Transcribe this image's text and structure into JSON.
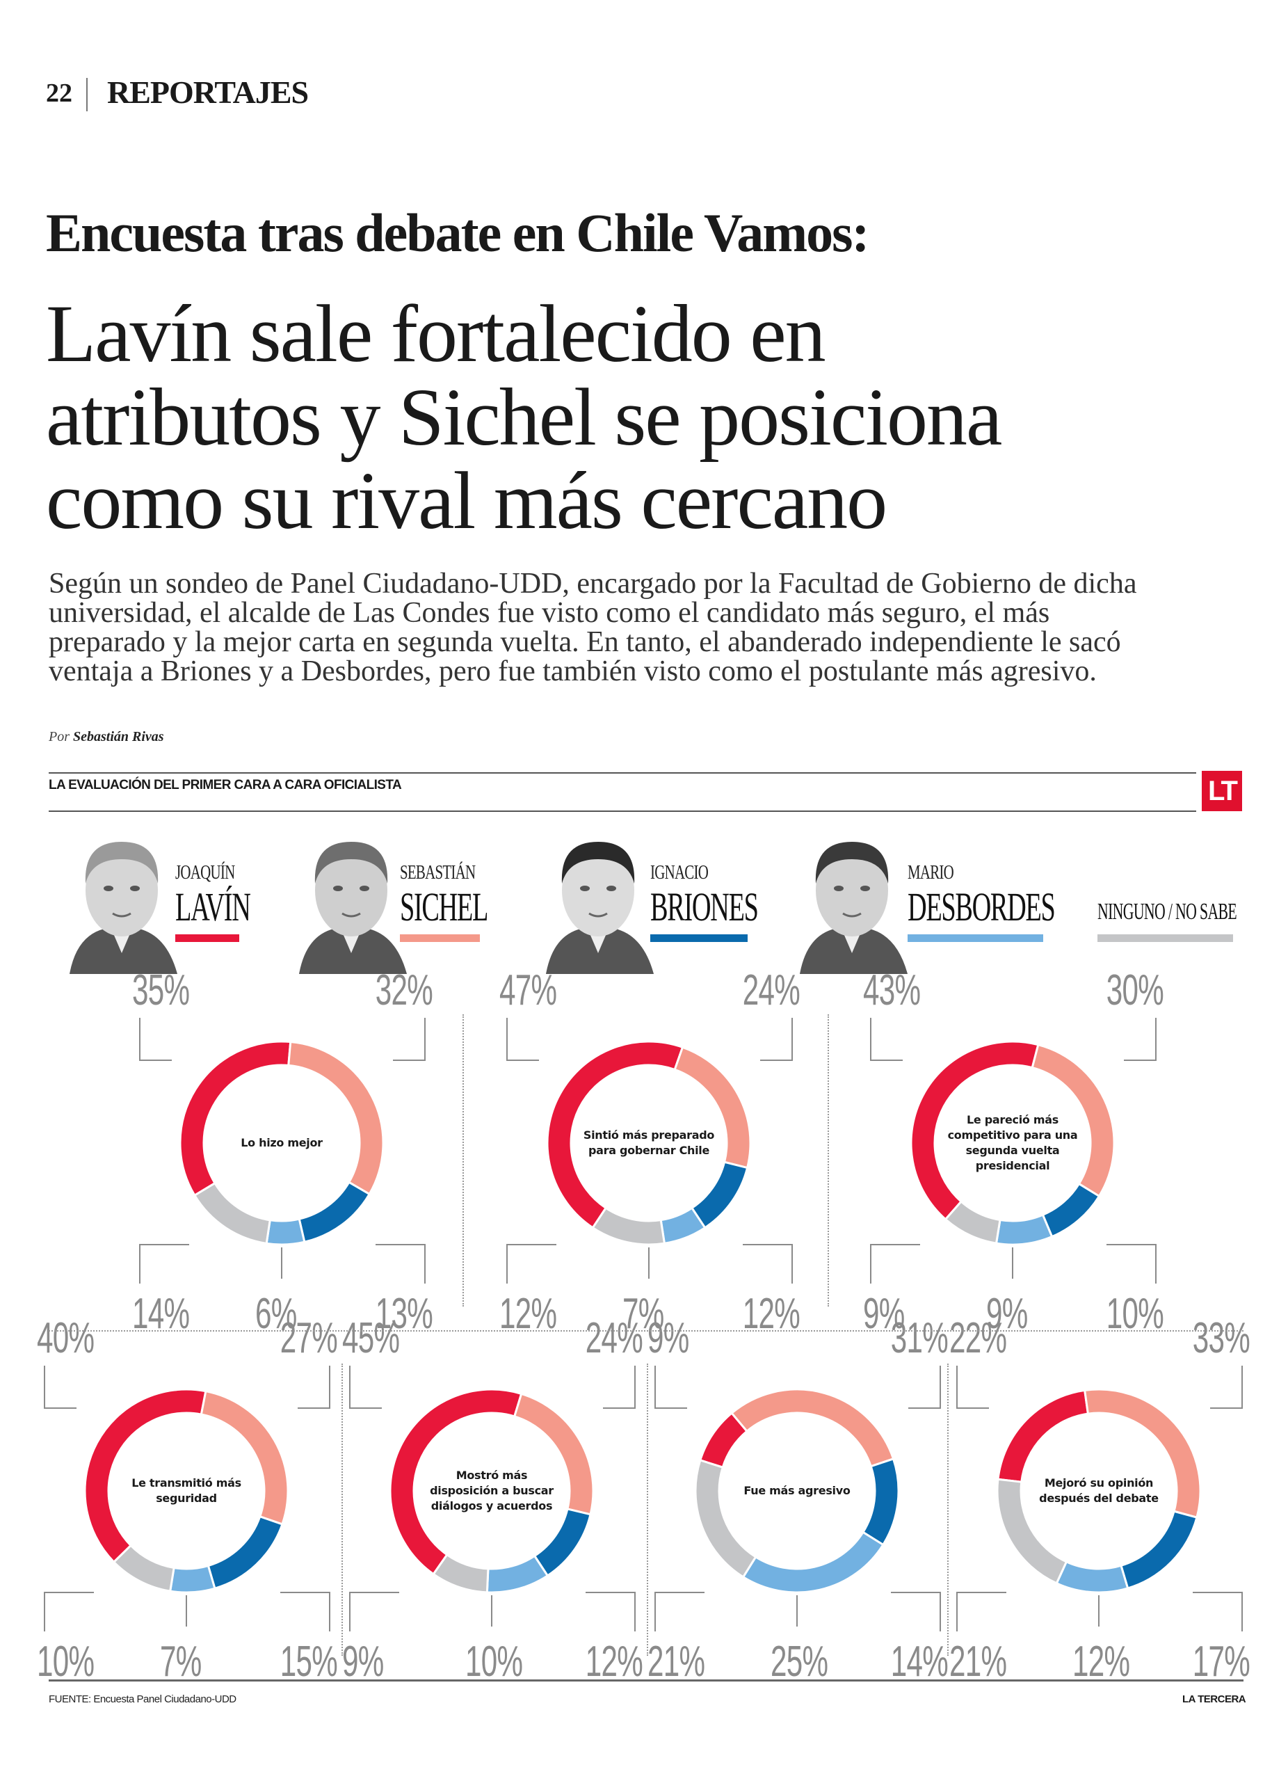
{
  "header": {
    "page_number": "22",
    "section": "REPORTAJES"
  },
  "article": {
    "kicker": "Encuesta tras debate en Chile Vamos:",
    "headline_lines": [
      "Lavín sale fortalecido en",
      "atributos y Sichel se posiciona",
      "como su rival más cercano"
    ],
    "deck_lines": [
      "Según un sondeo de Panel Ciudadano-UDD, encargado por la Facultad de Gobierno de dicha",
      "universidad, el alcalde de Las Condes fue visto como el candidato más seguro, el más",
      "preparado y la mejor carta en segunda vuelta. En tanto, el abanderado independiente le sacó",
      "ventaja a Briones y a Desbordes, pero fue también visto como el postulante más agresivo."
    ],
    "byline_prefix": "Por",
    "byline_author": "Sebastián Rivas"
  },
  "graphic": {
    "section_title": "LA EVALUACIÓN DEL PRIMER CARA A CARA OFICIALISTA",
    "logo": "LT",
    "source": "FUENTE: Encuesta Panel Ciudadano-UDD",
    "brand": "LA TERCERA"
  },
  "candidates": [
    {
      "first": "JOAQUÍN",
      "last": "LAVÍN",
      "color": "#e8173a"
    },
    {
      "first": "SEBASTIÁN",
      "last": "SICHEL",
      "color": "#f4998a"
    },
    {
      "first": "IGNACIO",
      "last": "BRIONES",
      "color": "#0a6aad"
    },
    {
      "first": "MARIO",
      "last": "DESBORDES",
      "color": "#72b1e1"
    },
    {
      "first": "",
      "last": "NINGUNO / NO SABE",
      "color": "#c4c5c7"
    }
  ],
  "chart_data": {
    "type": "pie",
    "variant": "donut",
    "series_names": [
      "Joaquín Lavín",
      "Sebastián Sichel",
      "Ignacio Briones",
      "Mario Desbordes",
      "Ninguno / No sabe"
    ],
    "colors": [
      "#e8173a",
      "#f4998a",
      "#0a6aad",
      "#72b1e1",
      "#c4c5c7"
    ],
    "unit": "%",
    "charts": [
      {
        "title": "Lo hizo mejor",
        "values": [
          35,
          32,
          13,
          6,
          14
        ]
      },
      {
        "title": "Sintió más preparado para gobernar Chile",
        "values": [
          47,
          24,
          12,
          7,
          12
        ]
      },
      {
        "title": "Le pareció más competitivo para una segunda vuelta presidencial",
        "values": [
          43,
          30,
          10,
          9,
          9
        ]
      },
      {
        "title": "Le transmitió más seguridad",
        "values": [
          40,
          27,
          15,
          7,
          10
        ]
      },
      {
        "title": "Mostró más disposición a buscar diálogos y acuerdos",
        "values": [
          45,
          24,
          12,
          10,
          9
        ]
      },
      {
        "title": "Fue más agresivo",
        "values": [
          9,
          31,
          14,
          25,
          21
        ]
      },
      {
        "title": "Mejoró su opinión después del debate",
        "values": [
          22,
          33,
          17,
          12,
          21
        ]
      }
    ],
    "center_label_lines": [
      [
        "Lo hizo mejor"
      ],
      [
        "Sintió más preparado",
        "para gobernar Chile"
      ],
      [
        "Le pareció más",
        "competitivo para una",
        "segunda vuelta",
        "presidencial"
      ],
      [
        "Le transmitió más",
        "seguridad"
      ],
      [
        "Mostró más",
        "disposición a buscar",
        "diálogos y acuerdos"
      ],
      [
        "Fue más agresivo"
      ],
      [
        "Mejoró su opinión",
        "después del debate"
      ]
    ]
  }
}
